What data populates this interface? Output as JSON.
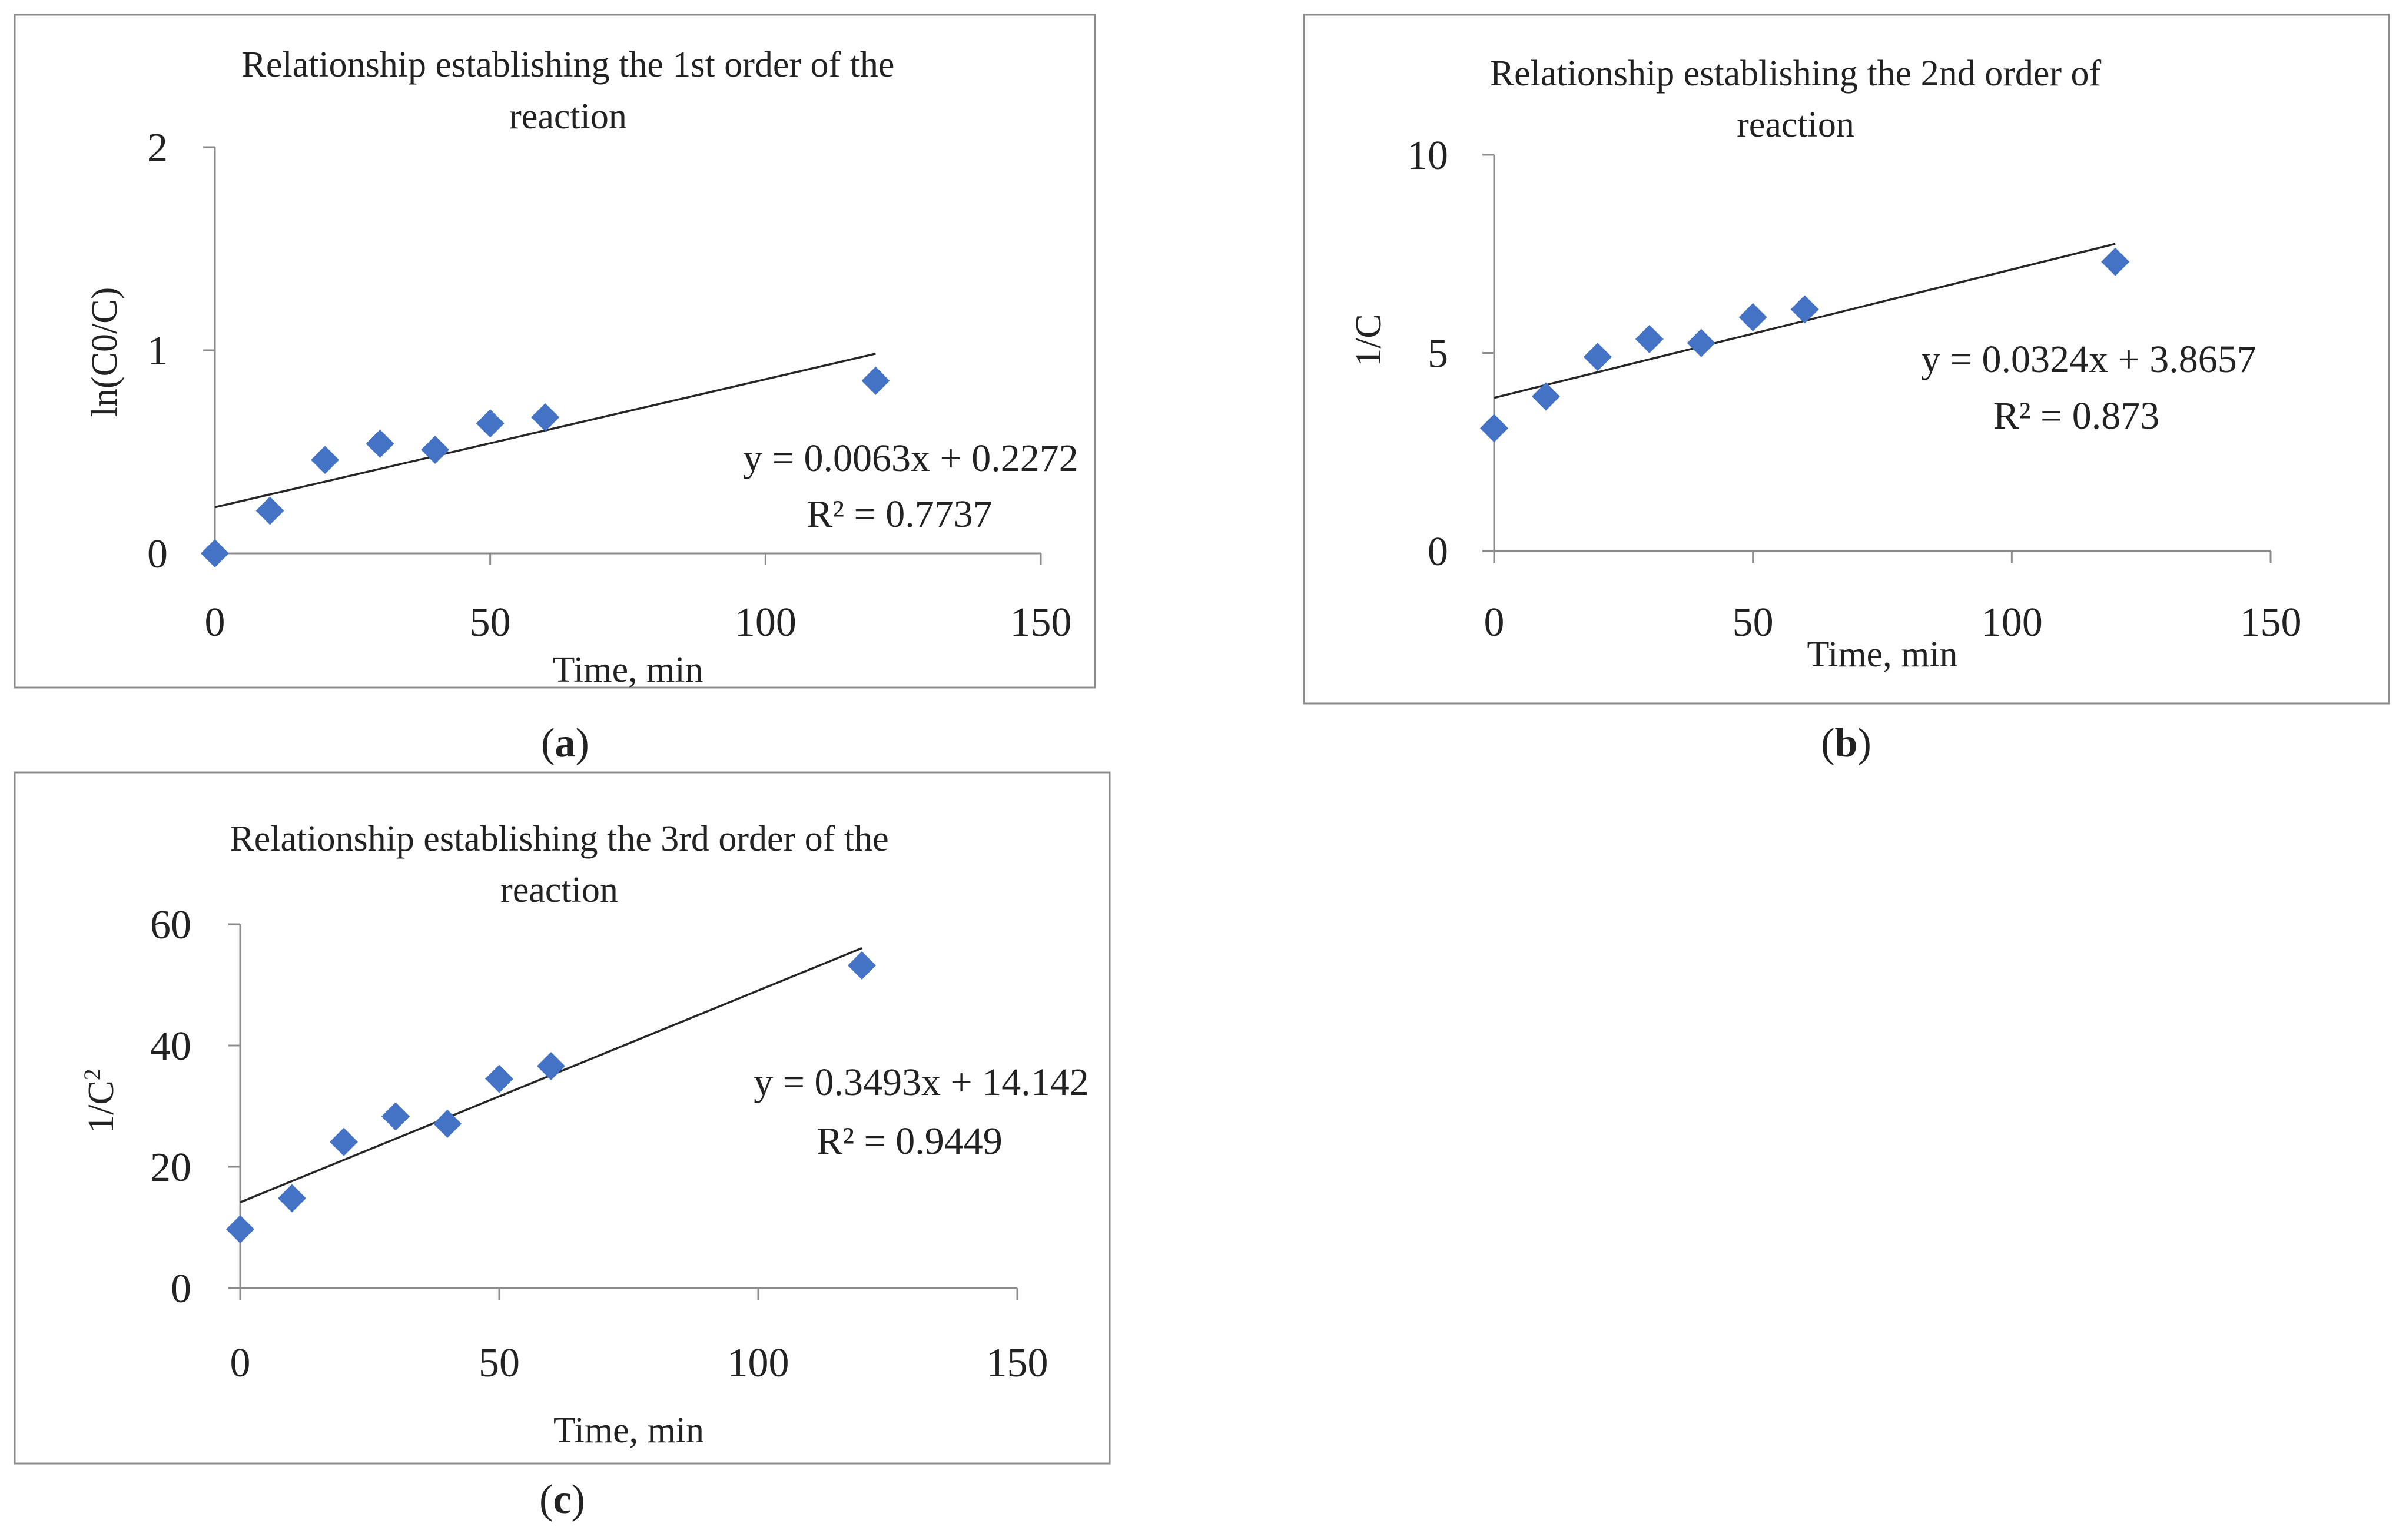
{
  "colors": {
    "marker": "#4472c4",
    "trendline": "#262626",
    "axis": "#8c8c8c",
    "frame": "#8c8c8c",
    "text": "#222222"
  },
  "chart_data": [
    {
      "type": "scatter",
      "panel_label": "a",
      "title_lines": [
        "Relationship establishing the 1st order of the",
        "reaction"
      ],
      "xlabel": "Time, min",
      "ylabel": "ln(C0/C)",
      "ylabel_superscript": "",
      "xlim": [
        0,
        150
      ],
      "ylim": [
        0,
        2
      ],
      "x_ticks": [
        0,
        50,
        100,
        150
      ],
      "y_ticks": [
        0,
        1,
        2
      ],
      "x": [
        0,
        10,
        20,
        30,
        40,
        50,
        60,
        120
      ],
      "y": [
        0,
        0.21,
        0.46,
        0.54,
        0.51,
        0.64,
        0.67,
        0.85
      ],
      "trendline": {
        "slope": 0.0063,
        "intercept": 0.2272,
        "x_range": [
          0,
          120
        ]
      },
      "equation": "y = 0.0063x + 0.2272",
      "r_squared": "R² = 0.7737"
    },
    {
      "type": "scatter",
      "panel_label": "b",
      "title_lines": [
        "Relationship establishing the 2nd order of",
        "reaction"
      ],
      "xlabel": "Time, min",
      "ylabel": "1/C",
      "ylabel_superscript": "",
      "xlim": [
        0,
        150
      ],
      "ylim": [
        0,
        10
      ],
      "x_ticks": [
        0,
        50,
        100,
        150
      ],
      "y_ticks": [
        0,
        5,
        10
      ],
      "x": [
        0,
        10,
        20,
        30,
        40,
        50,
        60,
        120
      ],
      "y": [
        3.1,
        3.9,
        4.9,
        5.35,
        5.25,
        5.9,
        6.1,
        7.3
      ],
      "trendline": {
        "slope": 0.0324,
        "intercept": 3.8657,
        "x_range": [
          0,
          120
        ]
      },
      "equation": "y = 0.0324x + 3.8657",
      "r_squared": "R² = 0.873"
    },
    {
      "type": "scatter",
      "panel_label": "c",
      "title_lines": [
        "Relationship establishing the 3rd order of the",
        "reaction"
      ],
      "xlabel": "Time, min",
      "ylabel": "1/C",
      "ylabel_superscript": "2",
      "xlim": [
        0,
        150
      ],
      "ylim": [
        0,
        60
      ],
      "x_ticks": [
        0,
        50,
        100,
        150
      ],
      "y_ticks": [
        0,
        20,
        40,
        60
      ],
      "x": [
        0,
        10,
        20,
        30,
        40,
        50,
        60,
        120
      ],
      "y": [
        9.7,
        14.8,
        24.1,
        28.3,
        27.1,
        34.5,
        36.6,
        53.2
      ],
      "trendline": {
        "slope": 0.3493,
        "intercept": 14.142,
        "x_range": [
          0,
          120
        ]
      },
      "equation": "y = 0.3493x + 14.142",
      "r_squared": "R² = 0.9449"
    }
  ]
}
